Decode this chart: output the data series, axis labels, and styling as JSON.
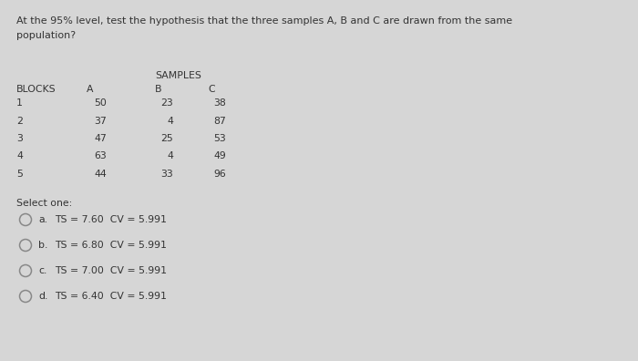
{
  "background_color": "#d6d6d6",
  "title_line1": "At the 95% level, test the hypothesis that the three samples A, B and C are drawn from the same",
  "title_line2": "population?",
  "samples_header": "SAMPLES",
  "col_headers": [
    "BLOCKS",
    "A",
    "B",
    "C"
  ],
  "rows": [
    [
      "1",
      "50",
      "23",
      "38"
    ],
    [
      "2",
      "37",
      "4",
      "87"
    ],
    [
      "3",
      "47",
      "25",
      "53"
    ],
    [
      "4",
      "63",
      "4",
      "49"
    ],
    [
      "5",
      "44",
      "33",
      "96"
    ]
  ],
  "select_one_label": "Select one:",
  "options": [
    {
      "label": "a.",
      "text": "TS = 7.60  CV = 5.991"
    },
    {
      "label": "b.",
      "text": "TS = 6.80  CV = 5.991"
    },
    {
      "label": "c.",
      "text": "TS = 7.00  CV = 5.991"
    },
    {
      "label": "d.",
      "text": "TS = 6.40  CV = 5.991"
    }
  ],
  "font_size_title": 8.0,
  "font_size_table": 7.8,
  "font_size_options": 7.8,
  "text_color": "#333333",
  "circle_color": "#888888"
}
